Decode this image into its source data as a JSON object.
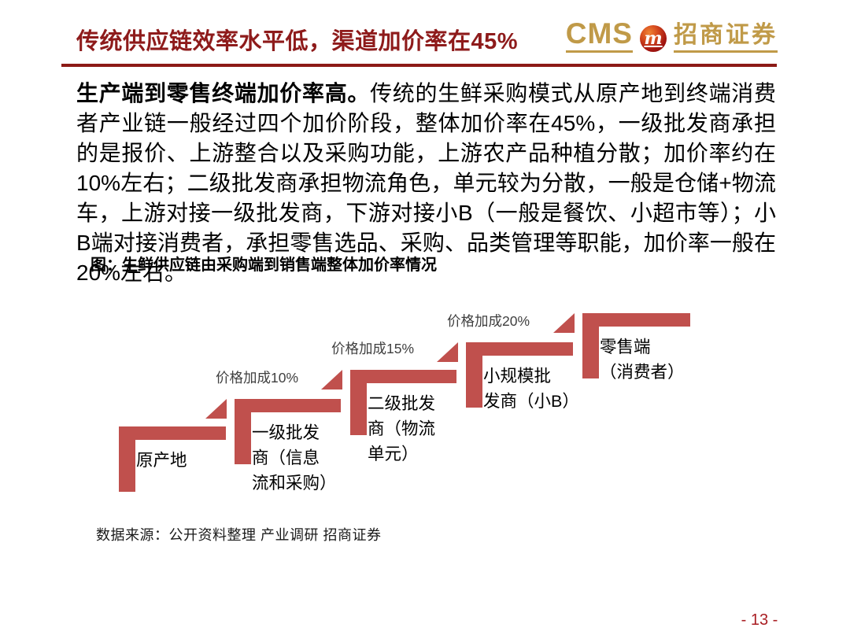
{
  "page": {
    "number": "- 13 -"
  },
  "header": {
    "title": "传统供应链效率水平低，渠道加价率在45%",
    "logo": {
      "wordmark": "CMS",
      "monogram": "m",
      "brand_cn": "招商证券"
    }
  },
  "body": {
    "lead": "生产端到零售终端加价率高。",
    "text": "传统的生鲜采购模式从原产地到终端消费者产业链一般经过四个加价阶段，整体加价率在45%，一级批发商承担的是报价、上游整合以及采购功能，上游农产品种植分散；加价率约在10%左右；二级批发商承担物流角色，单元较为分散，一般是仓储+物流车，上游对接一级批发商，下游对接小B（一般是餐饮、小超市等）；小B端对接消费者，承担零售选品、采购、品类管理等职能，加价率一般在20%左右。"
  },
  "figure": {
    "caption": "图：生鲜供应链由采购端到销售端整体加价率情况",
    "source": "数据来源：公开资料整理 产业调研 招商证券",
    "diagram_type": "stair-step",
    "steps": [
      {
        "name": "原产地",
        "lines": [
          "原产地"
        ],
        "markup_from_prev": null
      },
      {
        "name": "一级批发商（信息流和采购）",
        "lines": [
          "一级批发",
          "商（信息",
          "流和采购）"
        ],
        "markup_from_prev": "价格加成10%"
      },
      {
        "name": "二级批发商（物流单元）",
        "lines": [
          "二级批发",
          "商（物流",
          "单元）"
        ],
        "markup_from_prev": "价格加成15%"
      },
      {
        "name": "小规模批发商（小B）",
        "lines": [
          "小规模批",
          "发商（小B）"
        ],
        "markup_from_prev": "价格加成20%"
      },
      {
        "name": "零售端（消费者）",
        "lines": [
          "零售端",
          "（消费者）"
        ],
        "markup_from_prev": null
      }
    ]
  },
  "colors": {
    "diagram_red": "#C0504D",
    "title_red": "#8E1B1B",
    "rule_red": "#8C1A16",
    "gold": "#C09A48",
    "markup_text": "#3F3F3F",
    "label_text": "#000000",
    "page_number_red": "#A91D22"
  }
}
